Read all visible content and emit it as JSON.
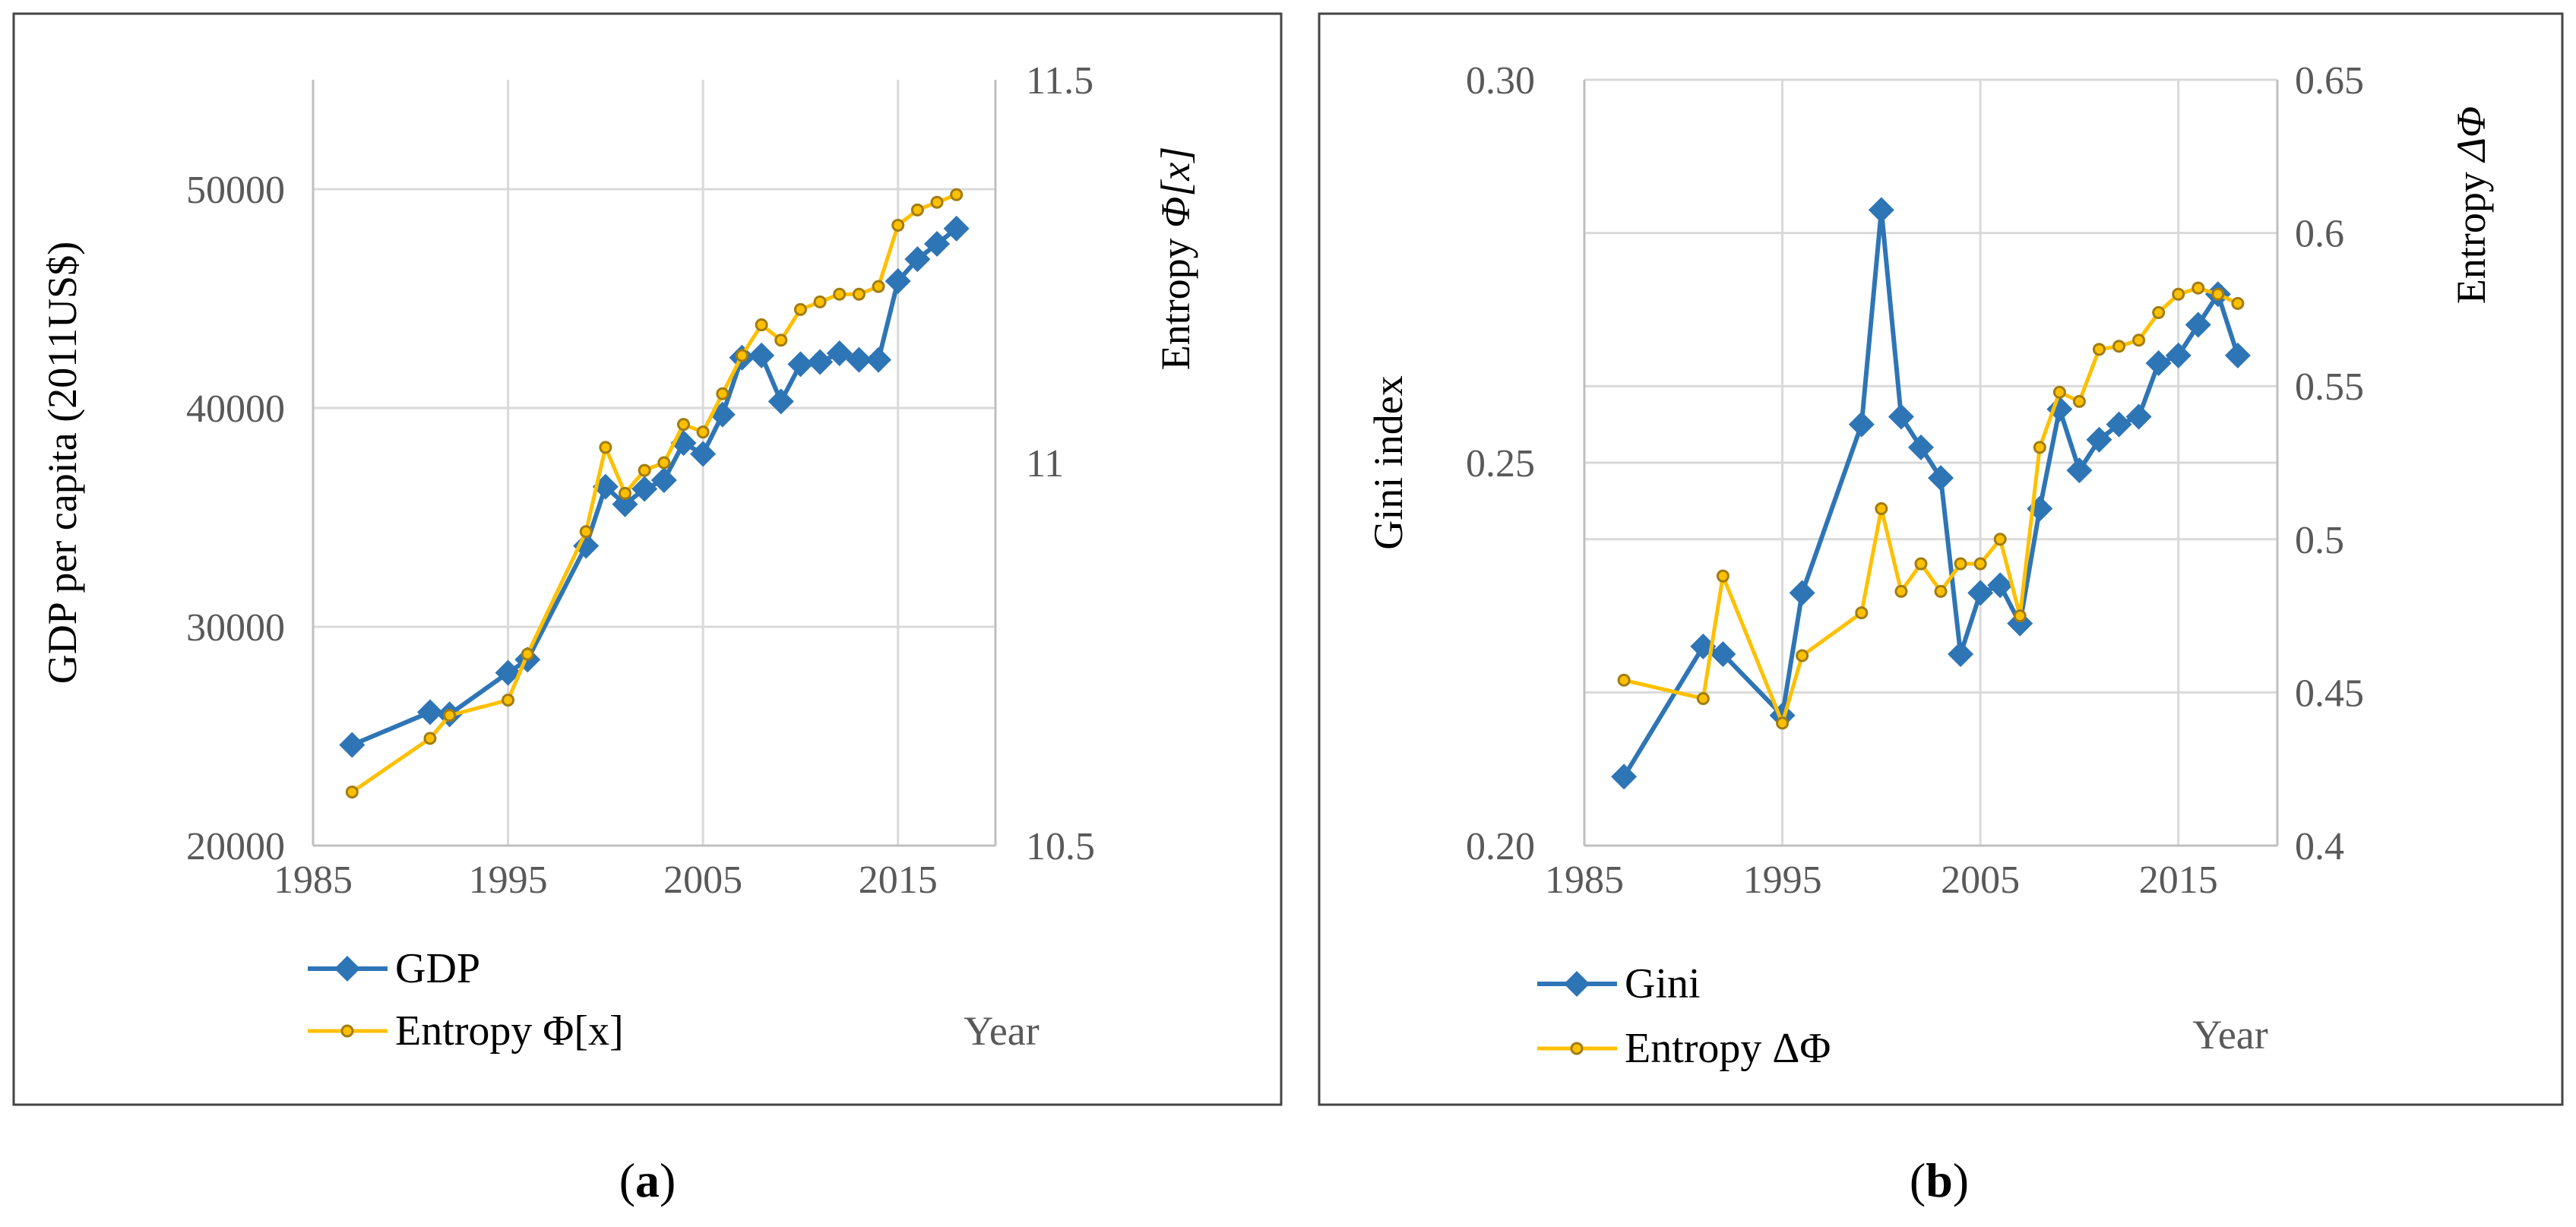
{
  "chart_data": [
    {
      "type": "line",
      "panel_label": "a",
      "xlabel": "Year",
      "ylabel": "GDP per capita (2011US$)",
      "y2label_prefix": "Entropy ",
      "y2label_symbol": "Φ[x]",
      "xlim": [
        1985,
        2020
      ],
      "ylim": [
        20000,
        55000
      ],
      "y2lim": [
        10.5,
        11.5
      ],
      "xticks": [
        "1985",
        "1995",
        "2005",
        "2015"
      ],
      "yticks": [
        "20000",
        "30000",
        "40000",
        "50000"
      ],
      "y2ticks": [
        "10.5",
        "11",
        "11.5"
      ],
      "colors": {
        "series1": "#2e75b6",
        "series2": "#ffc000",
        "series2_marker": "#a07c10"
      },
      "legend": [
        "GDP",
        "Entropy Φ[x]"
      ],
      "series": [
        {
          "name": "GDP",
          "axis": "left",
          "marker": "diamond",
          "x": [
            1987,
            1991,
            1992,
            1995,
            1996,
            1999,
            2000,
            2001,
            2002,
            2003,
            2004,
            2005,
            2006,
            2007,
            2008,
            2009,
            2010,
            2011,
            2012,
            2013,
            2014,
            2015,
            2016,
            2017,
            2018
          ],
          "values": [
            24600,
            26100,
            26000,
            27900,
            28500,
            33700,
            36400,
            35600,
            36300,
            36700,
            38400,
            37900,
            39700,
            42300,
            42400,
            40300,
            42000,
            42100,
            42500,
            42200,
            42200,
            45800,
            46800,
            47500,
            48200
          ]
        },
        {
          "name": "Entropy Φ[x]",
          "axis": "right",
          "marker": "dot",
          "x": [
            1987,
            1991,
            1992,
            1995,
            1996,
            1999,
            2000,
            2001,
            2002,
            2003,
            2004,
            2005,
            2006,
            2007,
            2008,
            2009,
            2010,
            2011,
            2012,
            2013,
            2014,
            2015,
            2016,
            2017,
            2018
          ],
          "values": [
            10.57,
            10.64,
            10.67,
            10.69,
            10.75,
            10.91,
            11.02,
            10.96,
            10.99,
            11.0,
            11.05,
            11.04,
            11.09,
            11.14,
            11.18,
            11.16,
            11.2,
            11.21,
            11.22,
            11.22,
            11.23,
            11.31,
            11.33,
            11.34,
            11.35
          ]
        }
      ]
    },
    {
      "type": "line",
      "panel_label": "b",
      "xlabel": "Year",
      "ylabel": "Gini index",
      "y2label_prefix": "Entropy ",
      "y2label_symbol": "ΔΦ",
      "xlim": [
        1985,
        2020
      ],
      "ylim": [
        0.2,
        0.3
      ],
      "y2lim": [
        0.4,
        0.65
      ],
      "xticks": [
        "1985",
        "1995",
        "2005",
        "2015"
      ],
      "yticks": [
        "0.20",
        "0.25",
        "0.30"
      ],
      "y2ticks": [
        "0.4",
        "0.45",
        "0.5",
        "0.55",
        "0.6",
        "0.65"
      ],
      "colors": {
        "series1": "#2e75b6",
        "series2": "#ffc000",
        "series2_marker": "#a07c10"
      },
      "legend": [
        "Gini",
        "Entropy ΔΦ"
      ],
      "series": [
        {
          "name": "Gini",
          "axis": "left",
          "marker": "diamond",
          "x": [
            1987,
            1991,
            1992,
            1995,
            1996,
            1999,
            2000,
            2001,
            2002,
            2003,
            2004,
            2005,
            2006,
            2007,
            2008,
            2009,
            2010,
            2011,
            2012,
            2013,
            2014,
            2015,
            2016,
            2017,
            2018
          ],
          "values": [
            0.209,
            0.226,
            0.225,
            0.217,
            0.233,
            0.255,
            0.283,
            0.256,
            0.252,
            0.248,
            0.225,
            0.233,
            0.234,
            0.229,
            0.244,
            0.257,
            0.249,
            0.253,
            0.255,
            0.256,
            0.263,
            0.264,
            0.268,
            0.272,
            0.264
          ]
        },
        {
          "name": "Entropy ΔΦ",
          "axis": "right",
          "marker": "dot",
          "x": [
            1987,
            1991,
            1992,
            1995,
            1996,
            1999,
            2000,
            2001,
            2002,
            2003,
            2004,
            2005,
            2006,
            2007,
            2008,
            2009,
            2010,
            2011,
            2012,
            2013,
            2014,
            2015,
            2016,
            2017,
            2018
          ],
          "values": [
            0.454,
            0.448,
            0.488,
            0.44,
            0.462,
            0.476,
            0.51,
            0.483,
            0.492,
            0.483,
            0.492,
            0.492,
            0.5,
            0.475,
            0.53,
            0.548,
            0.545,
            0.562,
            0.563,
            0.565,
            0.574,
            0.58,
            0.582,
            0.58,
            0.577
          ]
        }
      ]
    }
  ],
  "captions": [
    {
      "open": "(",
      "label": "a",
      "close": ")"
    },
    {
      "open": "(",
      "label": "b",
      "close": ")"
    }
  ]
}
